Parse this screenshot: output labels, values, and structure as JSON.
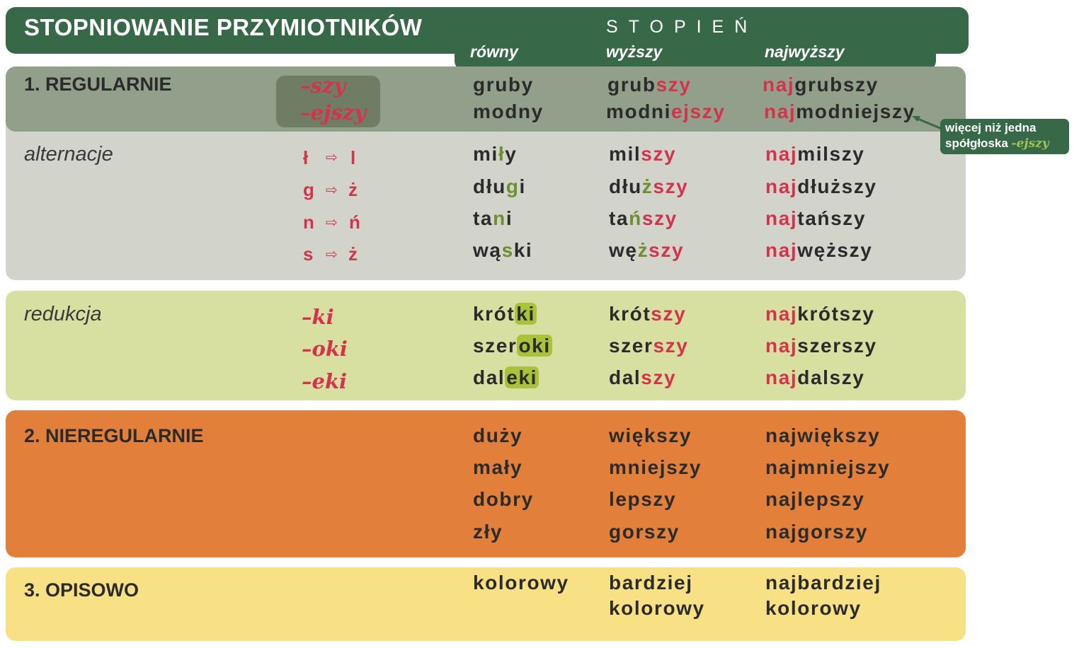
{
  "header": {
    "title": "STOPNIOWANIE PRZYMIOTNIKÓW",
    "degree": "STOPIEŃ",
    "col_rowny": "równy",
    "col_wyzszy": "wyższy",
    "col_najwyzszy": "najwyższy"
  },
  "regular": {
    "heading": "1. REGULARNIE",
    "suffix1": "–szy",
    "suffix2": "–ejszy",
    "rows": [
      {
        "r": "gruby",
        "w_stem": "grub",
        "w_end": "szy",
        "n_pre": "naj",
        "n_rest": "grubszy"
      },
      {
        "r": "modny",
        "w_stem": "modni",
        "w_end": "ejszy",
        "n_pre": "naj",
        "n_rest": "modniejszy"
      }
    ],
    "note_line1": "więcej niż jedna",
    "note_line2": "spółgłoska",
    "note_suffix": "-ejszy"
  },
  "alternation": {
    "label": "alternacje",
    "pairs": [
      {
        "from": "ł",
        "to": "l"
      },
      {
        "from": "g",
        "to": "ż"
      },
      {
        "from": "n",
        "to": "ń"
      },
      {
        "from": "s",
        "to": "ż"
      }
    ],
    "rows": [
      {
        "r_a": "mi",
        "r_b": "ł",
        "r_c": "y",
        "w_stem": "mil",
        "w_end": "szy",
        "n_pre": "naj",
        "n_rest": "milszy"
      },
      {
        "r_a": "dłu",
        "r_b": "g",
        "r_c": "i",
        "w_stem": "dłu",
        "w_mid": "ż",
        "w_end": "szy",
        "n_pre": "naj",
        "n_rest": "dłuższy"
      },
      {
        "r_a": "ta",
        "r_b": "n",
        "r_c": "i",
        "w_stem": "ta",
        "w_mid": "ń",
        "w_end": "szy",
        "n_pre": "naj",
        "n_rest": "tańszy"
      },
      {
        "r_a": "wą",
        "r_b": "s",
        "r_c": "ki",
        "w_stem": "wę",
        "w_mid": "ż",
        "w_end": "szy",
        "n_pre": "naj",
        "n_rest": "węższy"
      }
    ],
    "arrow": "⇨"
  },
  "reduction": {
    "label": "redukcja",
    "suffixes": [
      "–ki",
      "–oki",
      "–eki"
    ],
    "rows": [
      {
        "r_stem": "krót",
        "r_hl": "ki",
        "w_stem": "krót",
        "w_end": "szy",
        "n_pre": "naj",
        "n_rest": "krótszy"
      },
      {
        "r_stem": "szer",
        "r_hl": "oki",
        "w_stem": "szer",
        "w_end": "szy",
        "n_pre": "naj",
        "n_rest": "szerszy"
      },
      {
        "r_stem": "dal",
        "r_hl": "eki",
        "w_stem": "dal",
        "w_end": "szy",
        "n_pre": "naj",
        "n_rest": "dalszy"
      }
    ]
  },
  "irregular": {
    "heading": "2. NIEREGULARNIE",
    "rows": [
      {
        "r": "duży",
        "w": "większy",
        "n": "największy"
      },
      {
        "r": "mały",
        "w": "mniejszy",
        "n": "najmniejszy"
      },
      {
        "r": "dobry",
        "w": "lepszy",
        "n": "najlepszy"
      },
      {
        "r": "zły",
        "w": "gorszy",
        "n": "najgorszy"
      }
    ]
  },
  "descriptive": {
    "heading": "3. OPISOWO",
    "r": "kolorowy",
    "w1": "bardziej",
    "w2": "kolorowy",
    "n1": "najbardziej",
    "n2": "kolorowy"
  },
  "colors": {
    "header_green": "#376847",
    "accent_red": "#d3344c",
    "orange": "#e27f3a",
    "yellow": "#f8e185",
    "lime": "#d8e0a1",
    "gray": "#d2d4cc"
  }
}
